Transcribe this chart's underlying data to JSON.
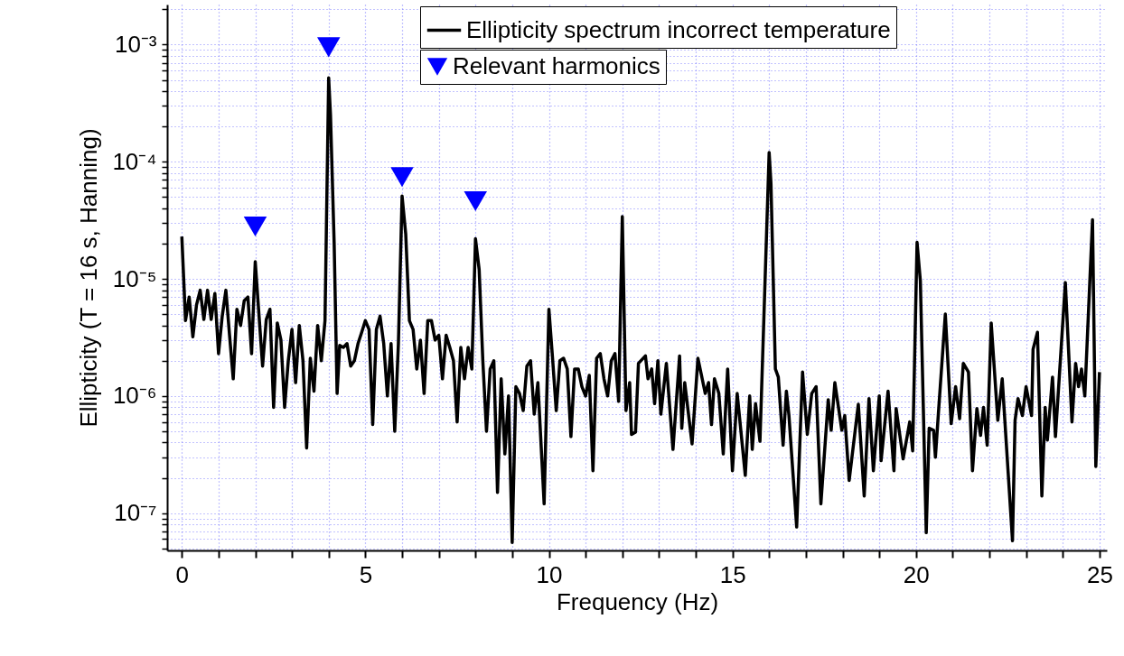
{
  "chart_data": {
    "type": "line",
    "xlabel": "Frequency (Hz)",
    "ylabel": "Ellipticity (T = 16 s, Hanning)",
    "log": "y",
    "grid": true,
    "legend": "top right",
    "xlim": [
      -0.4,
      25.2
    ],
    "ylim": [
      4.8e-08,
      0.0022
    ],
    "xticks": [
      0,
      {
        "value": 1,
        "label": null
      },
      {
        "value": 2,
        "label": null
      },
      {
        "value": 3,
        "label": null
      },
      {
        "value": 4,
        "label": null
      },
      5,
      {
        "value": 6,
        "label": null
      },
      {
        "value": 7,
        "label": null
      },
      {
        "value": 8,
        "label": null
      },
      {
        "value": 9,
        "label": null
      },
      10,
      {
        "value": 11,
        "label": null
      },
      {
        "value": 12,
        "label": null
      },
      {
        "value": 13,
        "label": null
      },
      {
        "value": 14,
        "label": null
      },
      15,
      {
        "value": 16,
        "label": null
      },
      {
        "value": 17,
        "label": null
      },
      {
        "value": 18,
        "label": null
      },
      {
        "value": 19,
        "label": null
      },
      20,
      {
        "value": 21,
        "label": null
      },
      {
        "value": 22,
        "label": null
      },
      {
        "value": 23,
        "label": null
      },
      {
        "value": 24,
        "label": null
      },
      25
    ],
    "yticks": [
      {
        "value": 5e-08,
        "label": null
      },
      {
        "value": 6e-08,
        "label": null
      },
      {
        "value": 7e-08,
        "label": null
      },
      {
        "value": 8e-08,
        "label": null
      },
      {
        "value": 9e-08,
        "label": null
      },
      {
        "value": 1e-07,
        "label": "10⁻⁷"
      },
      {
        "value": 2e-07,
        "label": null
      },
      {
        "value": 3e-07,
        "label": null
      },
      {
        "value": 4e-07,
        "label": null
      },
      {
        "value": 5e-07,
        "label": null
      },
      {
        "value": 6e-07,
        "label": null
      },
      {
        "value": 7e-07,
        "label": null
      },
      {
        "value": 8e-07,
        "label": null
      },
      {
        "value": 9e-07,
        "label": null
      },
      {
        "value": 1e-06,
        "label": "10⁻⁶"
      },
      {
        "value": 2e-06,
        "label": null
      },
      {
        "value": 3e-06,
        "label": null
      },
      {
        "value": 4e-06,
        "label": null
      },
      {
        "value": 5e-06,
        "label": null
      },
      {
        "value": 6e-06,
        "label": null
      },
      {
        "value": 7e-06,
        "label": null
      },
      {
        "value": 8e-06,
        "label": null
      },
      {
        "value": 9e-06,
        "label": null
      },
      {
        "value": 1e-05,
        "label": "10⁻⁵"
      },
      {
        "value": 2e-05,
        "label": null
      },
      {
        "value": 3e-05,
        "label": null
      },
      {
        "value": 4e-05,
        "label": null
      },
      {
        "value": 5e-05,
        "label": null
      },
      {
        "value": 6e-05,
        "label": null
      },
      {
        "value": 7e-05,
        "label": null
      },
      {
        "value": 8e-05,
        "label": null
      },
      {
        "value": 9e-05,
        "label": null
      },
      {
        "value": 0.0001,
        "label": "10⁻⁴"
      },
      {
        "value": 0.0002,
        "label": null
      },
      {
        "value": 0.0003,
        "label": null
      },
      {
        "value": 0.0004,
        "label": null
      },
      {
        "value": 0.0005,
        "label": null
      },
      {
        "value": 0.0006,
        "label": null
      },
      {
        "value": 0.0007,
        "label": null
      },
      {
        "value": 0.0008,
        "label": null
      },
      {
        "value": 0.0009,
        "label": null
      },
      {
        "value": 0.001,
        "label": "10⁻³"
      },
      {
        "value": 0.002,
        "label": null
      }
    ],
    "series": [
      {
        "name": "Ellipticity spectrum incorrect temperature",
        "color": "#000000",
        "line_style": "solid",
        "marker": "none",
        "x": [
          0,
          0.1,
          0.2,
          0.3,
          0.4,
          0.5,
          0.6,
          0.7,
          0.8,
          0.9,
          1.0,
          1.1,
          1.2,
          1.3,
          1.4,
          1.5,
          1.6,
          1.7,
          1.8,
          1.9,
          2.0,
          2.1,
          2.2,
          2.3,
          2.4,
          2.5,
          2.6,
          2.7,
          2.8,
          2.9,
          3.0,
          3.1,
          3.2,
          3.3,
          3.4,
          3.5,
          3.6,
          3.7,
          3.8,
          3.9,
          4.0,
          4.05,
          4.15,
          4.23,
          4.3,
          4.4,
          4.5,
          4.6,
          4.7,
          4.8,
          4.9,
          5.0,
          5.1,
          5.2,
          5.3,
          5.4,
          5.5,
          5.6,
          5.7,
          5.8,
          5.9,
          6.0,
          6.1,
          6.2,
          6.3,
          6.4,
          6.5,
          6.6,
          6.7,
          6.8,
          6.9,
          7.0,
          7.1,
          7.2,
          7.3,
          7.4,
          7.5,
          7.6,
          7.7,
          7.8,
          7.9,
          8.0,
          8.1,
          8.2,
          8.3,
          8.4,
          8.5,
          8.6,
          8.7,
          8.8,
          8.9,
          9.0,
          9.1,
          9.2,
          9.3,
          9.4,
          9.5,
          9.6,
          9.7,
          9.87,
          10.0,
          10.1,
          10.2,
          10.3,
          10.4,
          10.5,
          10.6,
          10.7,
          10.8,
          10.9,
          11.0,
          11.1,
          11.2,
          11.3,
          11.4,
          11.5,
          11.6,
          11.7,
          11.8,
          11.9,
          12.0,
          12.1,
          12.2,
          12.25,
          12.36,
          12.44,
          12.63,
          12.7,
          12.8,
          12.88,
          12.97,
          13.05,
          13.2,
          13.38,
          13.56,
          13.62,
          13.7,
          13.9,
          14.06,
          14.26,
          14.35,
          14.43,
          14.51,
          14.63,
          14.75,
          14.87,
          15.0,
          15.13,
          15.35,
          15.47,
          15.54,
          15.63,
          15.75,
          16.0,
          16.05,
          16.17,
          16.25,
          16.38,
          16.47,
          16.54,
          16.75,
          16.91,
          17.04,
          17.16,
          17.28,
          17.41,
          17.61,
          17.69,
          17.79,
          17.98,
          18.06,
          18.18,
          18.43,
          18.59,
          18.72,
          18.84,
          19.0,
          19.05,
          19.24,
          19.4,
          19.46,
          19.65,
          19.83,
          19.91,
          20.03,
          20.12,
          20.28,
          20.36,
          20.48,
          20.53,
          20.61,
          20.8,
          20.96,
          21.08,
          21.19,
          21.29,
          21.43,
          21.54,
          21.66,
          21.76,
          21.84,
          21.94,
          22.05,
          22.23,
          22.35,
          22.44,
          22.63,
          22.7,
          22.78,
          22.9,
          23.0,
          23.15,
          23.19,
          23.31,
          23.43,
          23.52,
          23.58,
          23.72,
          23.8,
          24.07,
          24.25,
          24.35,
          24.43,
          24.51,
          24.6,
          24.81,
          24.9,
          25.0
        ],
        "values": [
          2.3e-05,
          4.4e-06,
          7e-06,
          3.2e-06,
          6e-06,
          8e-06,
          4.5e-06,
          8e-06,
          4.5e-06,
          7.5e-06,
          2.3e-06,
          4.8e-06,
          8e-06,
          3.3e-06,
          1.4e-06,
          5.5e-06,
          4e-06,
          6.5e-06,
          7e-06,
          2.3e-06,
          1.4e-05,
          5e-06,
          1.8e-06,
          4.5e-06,
          5.5e-06,
          8e-07,
          4.2e-06,
          3e-06,
          8e-07,
          2e-06,
          3.7e-06,
          1.3e-06,
          4e-06,
          2e-06,
          3.6e-07,
          2.1e-06,
          1.1e-06,
          4e-06,
          2e-06,
          4.4e-06,
          0.00052,
          0.00025,
          2e-05,
          1.05e-06,
          2.7e-06,
          2.6e-06,
          2.8e-06,
          1.8e-06,
          2e-06,
          2.8e-06,
          3.5e-06,
          4.4e-06,
          3.7e-06,
          5.7e-07,
          3.7e-06,
          4.8e-06,
          2.8e-06,
          1e-06,
          2.8e-06,
          5e-07,
          2.8e-06,
          5.1e-05,
          2.4e-05,
          4.4e-06,
          3.7e-06,
          1.7e-06,
          3e-06,
          1.05e-06,
          4.4e-06,
          4.4e-06,
          3e-06,
          3.3e-06,
          1.4e-06,
          3.3e-06,
          2.6e-06,
          2e-06,
          6e-07,
          2.6e-06,
          1.4e-06,
          2.6e-06,
          1.7e-06,
          2.2e-05,
          1.2e-05,
          2e-06,
          5e-07,
          1.7e-06,
          2e-06,
          1.5e-07,
          1.4e-06,
          3.2e-07,
          1e-06,
          5.6e-08,
          1.2e-06,
          1.05e-06,
          7.5e-07,
          1.8e-06,
          2e-06,
          7e-07,
          1.3e-06,
          1.2e-07,
          5.5e-06,
          2.1e-06,
          7.5e-07,
          2e-06,
          2.1e-06,
          1.7e-06,
          4.5e-07,
          1.7e-06,
          1.7e-06,
          1.2e-06,
          1e-06,
          1.5e-06,
          2.3e-07,
          2.1e-06,
          2.3e-06,
          1.4e-06,
          1e-06,
          2e-06,
          2.3e-06,
          9e-07,
          3.4e-05,
          7.5e-07,
          1.3e-06,
          4.7e-07,
          4.9e-07,
          1.9e-06,
          2.2e-06,
          1.4e-06,
          1.7e-06,
          8.6e-07,
          2e-06,
          7e-07,
          1.9e-06,
          3.5e-07,
          2.2e-06,
          5.3e-07,
          1.3e-06,
          3.9e-07,
          2.1e-06,
          1.05e-06,
          1.3e-06,
          5.7e-07,
          1.4e-06,
          1.05e-06,
          3.2e-07,
          1.7e-06,
          2.3e-07,
          1.05e-06,
          2.1e-07,
          1e-06,
          3.5e-07,
          8.6e-07,
          4.1e-07,
          0.00012,
          6.5e-05,
          1.7e-06,
          1.45e-06,
          3.8e-07,
          1.1e-06,
          6.8e-07,
          7.6e-08,
          1.6e-06,
          4.7e-07,
          1.05e-06,
          1.2e-06,
          1.2e-07,
          9.3e-07,
          5.1e-07,
          1.3e-06,
          5.1e-07,
          6.8e-07,
          1.9e-07,
          8.5e-07,
          1.4e-07,
          9.5e-07,
          2.3e-07,
          1e-06,
          2.8e-07,
          1.1e-06,
          2.3e-07,
          7.8e-07,
          2.9e-07,
          6e-07,
          3.4e-07,
          2.05e-05,
          9.6e-06,
          6.8e-08,
          5.3e-07,
          5.1e-07,
          3e-07,
          7e-07,
          5e-06,
          5.8e-07,
          1.2e-06,
          6.4e-07,
          1.9e-06,
          1.6e-06,
          2.3e-07,
          7.8e-07,
          4.6e-07,
          8e-07,
          3.8e-07,
          4.2e-06,
          6.2e-07,
          1.4e-06,
          5e-07,
          5.8e-08,
          6.2e-07,
          9.5e-07,
          6.8e-07,
          1.2e-06,
          6.8e-07,
          2.5e-06,
          3.5e-06,
          1.4e-07,
          8e-07,
          4.2e-07,
          1.45e-06,
          4.5e-07,
          9.3e-06,
          6e-07,
          1.9e-06,
          1.2e-06,
          1.7e-06,
          1e-06,
          3.2e-05,
          2.5e-07,
          1.6e-06
        ]
      },
      {
        "name": "Relevant harmonics",
        "type": "scatter",
        "color": "#0000ff",
        "marker": "triangle",
        "x": [
          2,
          4,
          6,
          8
        ],
        "values": [
          2.8e-05,
          0.00095,
          7.4e-05,
          4.6e-05
        ]
      }
    ]
  }
}
